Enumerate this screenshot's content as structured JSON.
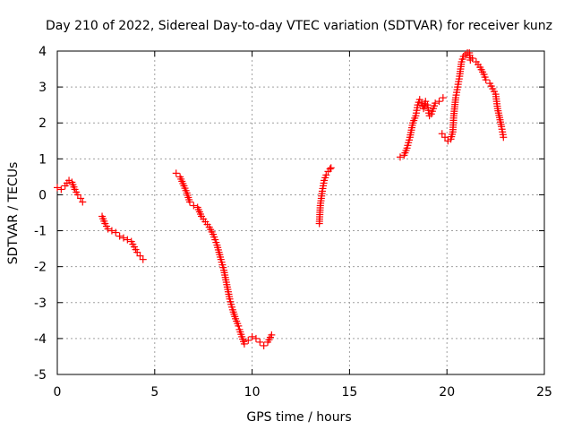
{
  "chart_data": {
    "type": "scatter",
    "title": "Day 210 of 2022, Sidereal Day-to-day VTEC variation (SDTVAR) for receiver kunz",
    "xlabel": "GPS time / hours",
    "ylabel": "SDTVAR / TECUs",
    "xlim": [
      0,
      25
    ],
    "ylim": [
      -5,
      4
    ],
    "xticks": [
      0,
      5,
      10,
      15,
      20,
      25
    ],
    "yticks": [
      -5,
      -4,
      -3,
      -2,
      -1,
      0,
      1,
      2,
      3,
      4
    ],
    "xtick_labels": [
      "0",
      "5",
      "10",
      "15",
      "20",
      "25"
    ],
    "ytick_labels": [
      "-5",
      "-4",
      "-3",
      "-2",
      "-1",
      "0",
      "1",
      "2",
      "3",
      "4"
    ],
    "grid": true,
    "marker": "+",
    "marker_color": "#ff0000",
    "series": [
      {
        "name": "SDTVAR",
        "x": [
          0.0,
          0.2,
          0.4,
          0.6,
          0.75,
          0.9,
          1.05,
          1.2,
          1.3,
          2.3,
          2.45,
          2.6,
          2.8,
          3.0,
          3.2,
          3.4,
          3.6,
          3.8,
          3.95,
          4.1,
          4.25,
          4.4,
          6.1,
          6.3,
          6.5,
          6.65,
          6.8,
          7.0,
          7.2,
          7.4,
          7.6,
          7.8,
          8.0,
          8.2,
          8.4,
          8.55,
          8.7,
          8.85,
          9.0,
          9.15,
          9.3,
          9.35,
          9.6,
          9.8,
          10.0,
          10.2,
          10.4,
          10.6,
          10.8,
          11.0,
          13.45,
          13.5,
          13.6,
          13.7,
          13.8,
          13.9,
          14.0,
          14.05,
          17.6,
          17.8,
          17.95,
          18.1,
          18.25,
          18.4,
          18.5,
          18.6,
          18.7,
          18.8,
          18.9,
          19.0,
          19.1,
          19.2,
          19.4,
          19.6,
          19.8,
          19.75,
          19.9,
          20.05,
          20.2,
          20.3,
          20.35,
          20.45,
          20.55,
          20.65,
          20.75,
          20.85,
          20.95,
          21.05,
          21.15,
          21.2,
          21.3,
          21.5,
          21.7,
          21.9,
          22.0,
          22.2,
          22.5,
          22.55,
          22.6,
          22.7,
          22.8,
          22.9
        ],
        "y": [
          0.2,
          0.15,
          0.25,
          0.4,
          0.35,
          0.15,
          0.0,
          -0.1,
          -0.2,
          -0.6,
          -0.8,
          -0.95,
          -1.0,
          -1.05,
          -1.15,
          -1.2,
          -1.25,
          -1.3,
          -1.45,
          -1.6,
          -1.7,
          -1.8,
          0.6,
          0.5,
          0.25,
          0.05,
          -0.2,
          -0.3,
          -0.35,
          -0.6,
          -0.75,
          -0.9,
          -1.1,
          -1.4,
          -1.8,
          -2.1,
          -2.5,
          -2.9,
          -3.2,
          -3.45,
          -3.65,
          -3.75,
          -4.15,
          -4.05,
          -3.95,
          -4.0,
          -4.1,
          -4.2,
          -4.1,
          -3.9,
          -0.8,
          -0.3,
          0.1,
          0.4,
          0.55,
          0.65,
          0.72,
          0.75,
          1.05,
          1.1,
          1.3,
          1.6,
          2.0,
          2.2,
          2.5,
          2.65,
          2.55,
          2.4,
          2.6,
          2.5,
          2.2,
          2.25,
          2.55,
          2.6,
          2.7,
          1.7,
          1.6,
          1.5,
          1.55,
          1.75,
          2.2,
          2.7,
          3.0,
          3.3,
          3.7,
          3.85,
          3.9,
          3.95,
          3.95,
          3.75,
          3.8,
          3.7,
          3.55,
          3.35,
          3.2,
          3.1,
          2.8,
          2.6,
          2.4,
          2.15,
          1.9,
          1.6
        ]
      }
    ]
  }
}
